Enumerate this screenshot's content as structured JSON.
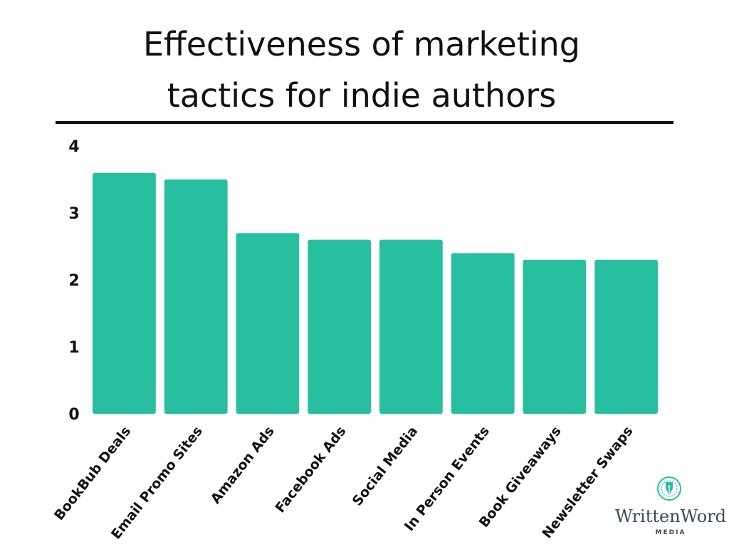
{
  "chart_data": {
    "type": "bar",
    "title_lines": [
      "Effectiveness of marketing",
      "tactics for indie authors"
    ],
    "categories": [
      "BookBub Deals",
      "Email Promo Sites",
      "Amazon Ads",
      "Facebook Ads",
      "Social Media",
      "In Person Events",
      "Book Giveaways",
      "Newsletter Swaps"
    ],
    "values": [
      3.6,
      3.5,
      2.7,
      2.6,
      2.6,
      2.4,
      2.3,
      2.3
    ],
    "ylim": [
      0,
      4
    ],
    "yticks": [
      "0",
      "1",
      "2",
      "3",
      "4"
    ],
    "grid": false,
    "colors": {
      "bar": "#27bfa0",
      "text": "#111111",
      "rule": "#111111"
    }
  },
  "brand": {
    "name": "WrittenWord",
    "sub": "MEDIA",
    "logo_icon": "pen-nib-icon",
    "color": "#3a4a57",
    "accent": "#27bfa0"
  }
}
